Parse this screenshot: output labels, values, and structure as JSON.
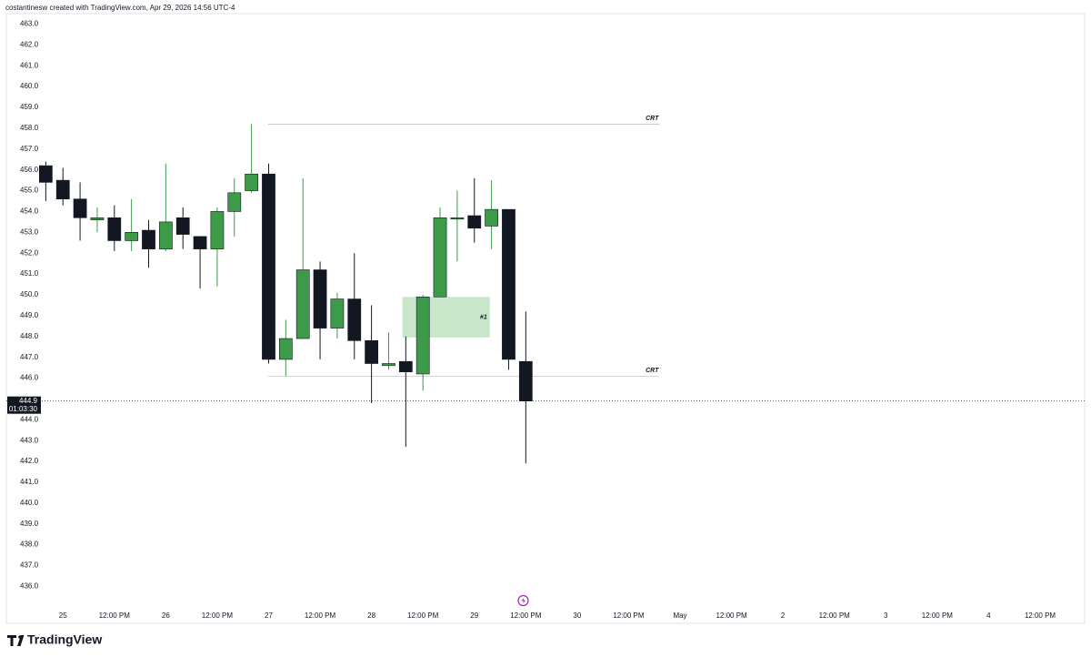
{
  "chart_data": {
    "type": "candlestick",
    "subtitle": "costantinesw created with TradingView.com, Apr 29, 2026 14:56 UTC-4",
    "x": [
      0,
      1,
      2,
      3,
      4,
      5,
      6,
      7,
      8,
      9,
      10,
      11,
      12,
      13,
      14,
      15,
      16,
      17,
      18,
      19,
      20,
      21,
      22,
      23,
      24,
      25,
      26,
      27,
      28
    ],
    "open": [
      456.2,
      455.5,
      454.6,
      453.6,
      453.7,
      452.6,
      453.1,
      452.2,
      453.7,
      452.8,
      452.2,
      454.0,
      455.0,
      455.8,
      446.9,
      447.9,
      451.2,
      448.4,
      449.8,
      447.8,
      446.6,
      446.8,
      446.2,
      449.9,
      453.65,
      453.8,
      453.3,
      454.1,
      446.8
    ],
    "high": [
      456.4,
      456.1,
      455.4,
      454.2,
      454.3,
      454.6,
      453.6,
      456.3,
      454.2,
      452.8,
      454.2,
      455.6,
      458.2,
      456.3,
      448.8,
      455.6,
      451.6,
      450.1,
      452.0,
      449.5,
      448.2,
      448.0,
      450.0,
      454.2,
      455.0,
      455.6,
      455.5,
      454.1,
      449.2
    ],
    "low": [
      454.5,
      454.3,
      452.6,
      453.0,
      452.1,
      452.1,
      451.3,
      452.1,
      452.2,
      450.3,
      450.4,
      452.8,
      454.9,
      446.7,
      446.1,
      447.9,
      446.9,
      447.9,
      446.9,
      444.8,
      446.4,
      442.7,
      445.4,
      449.9,
      451.6,
      452.5,
      452.2,
      446.4,
      441.9
    ],
    "close": [
      455.4,
      454.6,
      453.7,
      453.7,
      452.6,
      453.0,
      452.2,
      453.5,
      452.9,
      452.2,
      454.0,
      454.9,
      455.8,
      446.9,
      447.9,
      451.2,
      448.4,
      449.8,
      447.8,
      446.7,
      446.7,
      446.3,
      449.9,
      453.7,
      453.7,
      453.2,
      454.1,
      446.9,
      444.9
    ],
    "up_color": "#3d9a48",
    "down_color": "#131722",
    "xlim": [
      -2.3,
      60.6
    ],
    "ylim": [
      435.1,
      463.5
    ],
    "xticks": [
      {
        "value": 1,
        "label": "25"
      },
      {
        "value": 4,
        "label": "12:00 PM"
      },
      {
        "value": 7,
        "label": "26"
      },
      {
        "value": 10,
        "label": "12:00 PM"
      },
      {
        "value": 13,
        "label": "27"
      },
      {
        "value": 16,
        "label": "12:00 PM"
      },
      {
        "value": 19,
        "label": "28"
      },
      {
        "value": 22,
        "label": "12:00 PM"
      },
      {
        "value": 25,
        "label": "29"
      },
      {
        "value": 28,
        "label": "12:00 PM"
      },
      {
        "value": 31,
        "label": "30"
      },
      {
        "value": 34,
        "label": "12:00 PM"
      },
      {
        "value": 37,
        "label": "May"
      },
      {
        "value": 40,
        "label": "12:00 PM"
      },
      {
        "value": 43,
        "label": "2"
      },
      {
        "value": 46,
        "label": "12:00 PM"
      },
      {
        "value": 49,
        "label": "3"
      },
      {
        "value": 52,
        "label": "12:00 PM"
      },
      {
        "value": 55,
        "label": "4"
      },
      {
        "value": 58,
        "label": "12:00 PM"
      }
    ],
    "yticks": [
      {
        "value": 436,
        "label": "436.0"
      },
      {
        "value": 437,
        "label": "437.0"
      },
      {
        "value": 438,
        "label": "438.0"
      },
      {
        "value": 439,
        "label": "439.0"
      },
      {
        "value": 440,
        "label": "440.0"
      },
      {
        "value": 441,
        "label": "441.0"
      },
      {
        "value": 442,
        "label": "442.0"
      },
      {
        "value": 443,
        "label": "443.0"
      },
      {
        "value": 444,
        "label": "444.0"
      },
      {
        "value": 446,
        "label": "446.0"
      },
      {
        "value": 447,
        "label": "447.0"
      },
      {
        "value": 448,
        "label": "448.0"
      },
      {
        "value": 449,
        "label": "449.0"
      },
      {
        "value": 450,
        "label": "450.0"
      },
      {
        "value": 451,
        "label": "451.0"
      },
      {
        "value": 452,
        "label": "452.0"
      },
      {
        "value": 453,
        "label": "453.0"
      },
      {
        "value": 454,
        "label": "454.0"
      },
      {
        "value": 455,
        "label": "455.0"
      },
      {
        "value": 456,
        "label": "456.0"
      },
      {
        "value": 457,
        "label": "457.0"
      },
      {
        "value": 458,
        "label": "458.0"
      },
      {
        "value": 459,
        "label": "459.0"
      },
      {
        "value": 460,
        "label": "460.0"
      },
      {
        "value": 461,
        "label": "461.0"
      },
      {
        "value": 462,
        "label": "462.0"
      },
      {
        "value": 463,
        "label": "463.0"
      }
    ],
    "last_price": {
      "value": 444.9,
      "countdown": "01:03:30"
    },
    "levels": [
      {
        "label": "CRT",
        "value": 458.2,
        "x_start": 13,
        "x_end": 35.8
      },
      {
        "label": "CRT",
        "value": 446.1,
        "x_start": 13,
        "x_end": 35.8
      }
    ],
    "zones": [
      {
        "label": "#1",
        "x_start": 20.8,
        "x_end": 25.9,
        "low": 447.95,
        "high": 449.9,
        "color": "#c8e6c9"
      }
    ]
  },
  "footer": {
    "brand": "TradingView"
  }
}
